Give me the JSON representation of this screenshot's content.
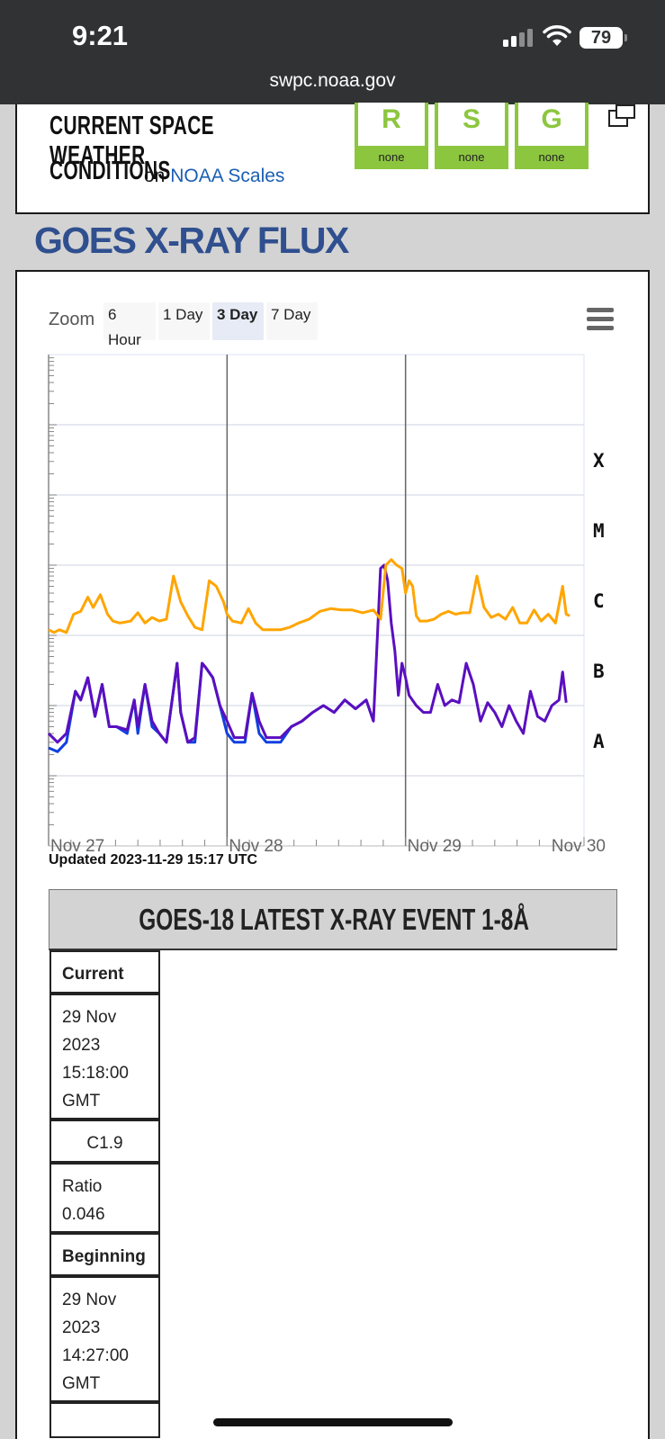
{
  "status_bar": {
    "time": "9:21",
    "battery": "79",
    "url": "swpc.noaa.gov"
  },
  "conditions": {
    "title_line1": "CURRENT SPACE WEATHER",
    "title_line2": "CONDITIONS",
    "on_text": "on",
    "link_text": "NOAA Scales",
    "scales": [
      {
        "letter": "R",
        "level": "none"
      },
      {
        "letter": "S",
        "level": "none"
      },
      {
        "letter": "G",
        "level": "none"
      }
    ],
    "scale_color": "#8cc63f"
  },
  "heading": "GOES X-RAY FLUX",
  "zoom": {
    "label": "Zoom",
    "buttons": [
      "6 Hour",
      "1 Day",
      "3 Day",
      "7 Day"
    ],
    "active": "3 Day"
  },
  "chart_data": {
    "type": "line",
    "x_ticks": [
      "Nov 27",
      "Nov 28",
      "Nov 29",
      "Nov 30"
    ],
    "xlim": [
      "2023-11-27",
      "2023-11-30"
    ],
    "y_scale": "log",
    "flare_classes": [
      "X",
      "M",
      "C",
      "B",
      "A"
    ],
    "ylim_class_bands": [
      "below A",
      "above X"
    ],
    "grid": true,
    "series": [
      {
        "color": "#ffa500",
        "x_days_from_nov27": [
          0,
          0.03,
          0.06,
          0.1,
          0.14,
          0.18,
          0.22,
          0.25,
          0.29,
          0.33,
          0.36,
          0.4,
          0.46,
          0.5,
          0.54,
          0.58,
          0.62,
          0.66,
          0.7,
          0.74,
          0.78,
          0.82,
          0.86,
          0.9,
          0.94,
          0.98,
          1.0,
          1.03,
          1.08,
          1.12,
          1.16,
          1.2,
          1.25,
          1.3,
          1.35,
          1.4,
          1.46,
          1.52,
          1.58,
          1.64,
          1.7,
          1.76,
          1.82,
          1.86,
          1.89,
          1.92,
          1.95,
          1.98,
          2.0,
          2.02,
          2.04,
          2.06,
          2.08,
          2.12,
          2.16,
          2.2,
          2.24,
          2.28,
          2.32,
          2.36,
          2.4,
          2.44,
          2.48,
          2.52,
          2.56,
          2.6,
          2.64,
          2.68,
          2.72,
          2.76,
          2.8,
          2.84,
          2.88,
          2.9,
          2.92
        ],
        "y_class": [
          "C1.2",
          "C1.1",
          "C1.2",
          "C1.1",
          "C2.0",
          "C2.2",
          "C3.5",
          "C2.5",
          "C3.8",
          "C2.0",
          "C1.6",
          "C1.5",
          "C1.6",
          "C2.1",
          "C1.5",
          "C1.8",
          "C1.6",
          "C1.7",
          "C7.0",
          "C3.0",
          "C1.9",
          "C1.3",
          "C1.2",
          "C6.0",
          "C5.0",
          "C3.0",
          "C2.0",
          "C1.6",
          "C1.5",
          "C2.4",
          "C1.5",
          "C1.2",
          "C1.2",
          "C1.2",
          "C1.3",
          "C1.5",
          "C1.7",
          "C2.2",
          "C2.4",
          "C2.3",
          "C2.3",
          "C2.1",
          "C2.3",
          "C1.7",
          "M1.0",
          "M1.2",
          "M1.0",
          "C9.0",
          "C4.0",
          "C6.0",
          "C5.0",
          "C1.9",
          "C1.6",
          "C1.6",
          "C1.7",
          "C2.0",
          "C2.2",
          "C2.0",
          "C2.1",
          "C2.1",
          "C7.0",
          "C2.5",
          "C1.8",
          "C2.0",
          "C1.7",
          "C2.5",
          "C1.5",
          "C1.5",
          "C2.3",
          "C1.6",
          "C2.0",
          "C1.5",
          "C5.0",
          "C2.0",
          "C1.9"
        ]
      },
      {
        "color": "#5a0fbf",
        "x_days_from_nov27": [
          0,
          0.05,
          0.1,
          0.15,
          0.18,
          0.22,
          0.26,
          0.3,
          0.34,
          0.38,
          0.44,
          0.48,
          0.5,
          0.54,
          0.58,
          0.62,
          0.66,
          0.72,
          0.74,
          0.78,
          0.82,
          0.86,
          0.88,
          0.92,
          0.96,
          1.0,
          1.04,
          1.1,
          1.14,
          1.18,
          1.22,
          1.26,
          1.3,
          1.36,
          1.42,
          1.48,
          1.54,
          1.6,
          1.66,
          1.72,
          1.78,
          1.82,
          1.86,
          1.88,
          1.9,
          1.92,
          1.94,
          1.96,
          1.98,
          2.0,
          2.02,
          2.06,
          2.1,
          2.14,
          2.18,
          2.22,
          2.26,
          2.3,
          2.34,
          2.38,
          2.42,
          2.46,
          2.5,
          2.54,
          2.58,
          2.62,
          2.66,
          2.7,
          2.74,
          2.78,
          2.82,
          2.86,
          2.88,
          2.9
        ],
        "y_class": [
          "A4.0",
          "A3.0",
          "A4.0",
          "B1.6",
          "B1.2",
          "B2.5",
          "A7.0",
          "B2.0",
          "A5.0",
          "A5.0",
          "A4.5",
          "B1.2",
          "A5.0",
          "B2.0",
          "A6.0",
          "A4.0",
          "A3.0",
          "B4.0",
          "A8.0",
          "A3.0",
          "A3.5",
          "B4.0",
          "B3.5",
          "B2.5",
          "B1.0",
          "A6.0",
          "A3.5",
          "A3.5",
          "B1.5",
          "A6.0",
          "A3.5",
          "A3.5",
          "A3.5",
          "A5.0",
          "A6.0",
          "A8.0",
          "B1.0",
          "A8.0",
          "B1.2",
          "A9.0",
          "B1.2",
          "A6.0",
          "C9.0",
          "M1.0",
          "C6.0",
          "C1.5",
          "B6.0",
          "B1.4",
          "B4.0",
          "B2.5",
          "B1.4",
          "B1.0",
          "A8.0",
          "A8.0",
          "B2.0",
          "B1.0",
          "B1.2",
          "B1.1",
          "B4.0",
          "B2.0",
          "A6.0",
          "B1.1",
          "A8.0",
          "A5.0",
          "B1.0",
          "A6.0",
          "A4.0",
          "B1.6",
          "A7.0",
          "A6.0",
          "B1.0",
          "B1.2",
          "B3.0",
          "B1.1"
        ]
      },
      {
        "color": "#1040e0",
        "x_days_from_nov27": [
          0,
          0.05,
          0.1,
          0.15,
          0.18,
          0.22,
          0.26,
          0.3,
          0.34,
          0.38,
          0.44,
          0.48,
          0.5,
          0.54,
          0.58,
          0.62,
          0.66,
          0.72,
          0.74,
          0.78,
          0.82,
          0.86,
          0.88,
          0.92,
          0.96,
          1.0,
          1.04,
          1.1,
          1.14,
          1.18,
          1.22,
          1.26,
          1.3,
          1.36,
          1.42,
          1.48,
          1.54,
          1.6,
          1.66,
          1.72,
          1.78,
          1.82
        ],
        "y_class": [
          "A2.5",
          "A2.2",
          "A3.0",
          "B1.6",
          "B1.2",
          "B2.5",
          "A7.0",
          "B2.0",
          "A5.0",
          "A5.0",
          "A4.0",
          "B1.2",
          "A4.0",
          "B2.0",
          "A5.0",
          "A4.0",
          "A3.0",
          "B4.0",
          "A8.0",
          "A3.0",
          "A3.0",
          "B4.0",
          "B3.5",
          "B2.5",
          "B1.0",
          "A4.0",
          "A3.0",
          "A3.0",
          "B1.5",
          "A4.0",
          "A3.0",
          "A3.0",
          "A3.0",
          "A5.0",
          "A6.0",
          "A8.0",
          "B1.0",
          "A8.0",
          "B1.2",
          "A9.0",
          "B1.2",
          "A6.0"
        ]
      }
    ]
  },
  "updated": "Updated 2023-11-29 15:17 UTC",
  "event": {
    "title": "GOES-18 LATEST X-RAY EVENT 1-8Å",
    "current_label": "Current",
    "current_time": "29 Nov 2023 15:18:00 GMT",
    "current_class": "C1.9",
    "ratio": "Ratio 0.046",
    "beginning_label": "Beginning",
    "beginning_time": "29 Nov 2023 14:27:00 GMT"
  }
}
